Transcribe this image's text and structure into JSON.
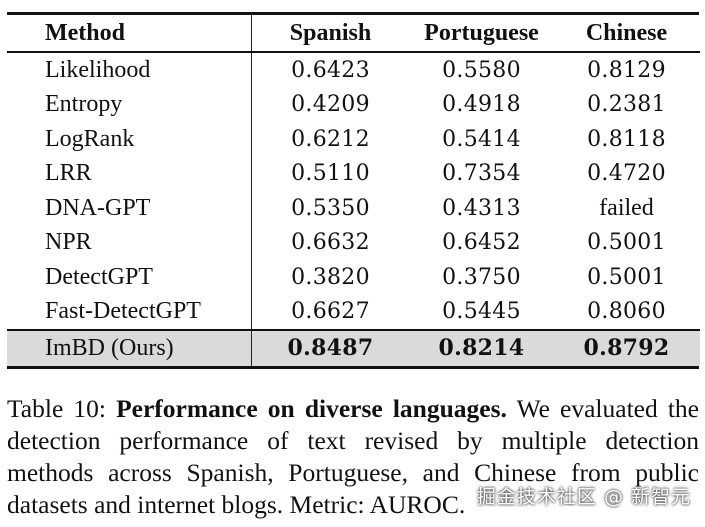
{
  "table": {
    "headers": [
      "Method",
      "Spanish",
      "Portuguese",
      "Chinese"
    ],
    "rows": [
      {
        "method": "Likelihood",
        "spanish": "0.6423",
        "portuguese": "0.5580",
        "chinese": "0.8129"
      },
      {
        "method": "Entropy",
        "spanish": "0.4209",
        "portuguese": "0.4918",
        "chinese": "0.2381"
      },
      {
        "method": "LogRank",
        "spanish": "0.6212",
        "portuguese": "0.5414",
        "chinese": "0.8118"
      },
      {
        "method": "LRR",
        "spanish": "0.5110",
        "portuguese": "0.7354",
        "chinese": "0.4720"
      },
      {
        "method": "DNA-GPT",
        "spanish": "0.5350",
        "portuguese": "0.4313",
        "chinese": "failed"
      },
      {
        "method": "NPR",
        "spanish": "0.6632",
        "portuguese": "0.6452",
        "chinese": "0.5001"
      },
      {
        "method": "DetectGPT",
        "spanish": "0.3820",
        "portuguese": "0.3750",
        "chinese": "0.5001"
      },
      {
        "method": "Fast-DetectGPT",
        "spanish": "0.6627",
        "portuguese": "0.5445",
        "chinese": "0.8060"
      }
    ],
    "ours": {
      "method": "ImBD (Ours)",
      "spanish": "0.8487",
      "portuguese": "0.8214",
      "chinese": "0.8792"
    }
  },
  "caption": {
    "label": "Table 10:",
    "title": "Performance on diverse languages.",
    "body": "We evaluated the detection performance of text revised by multiple detection methods across Spanish, Portuguese, and Chinese from public datasets and internet blogs. Metric: AUROC."
  },
  "watermark": "掘金技术社区 @ 新智元"
}
